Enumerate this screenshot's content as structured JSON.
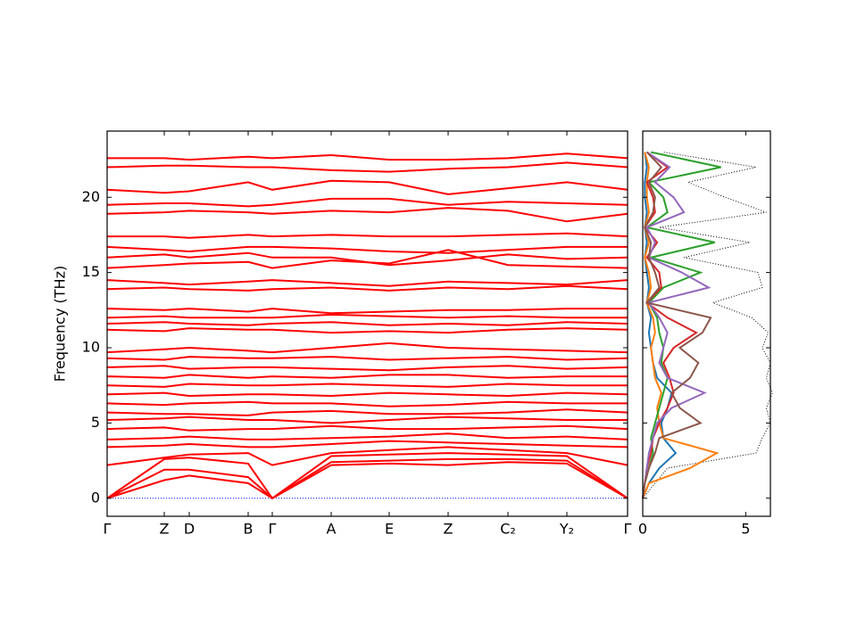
{
  "chart_data": [
    {
      "type": "band",
      "y_label": "Frequency (THz)",
      "line_color": "#ff0000",
      "zero_line": "#0000ff",
      "x": [
        0,
        0.64,
        0.92,
        1.58,
        1.85,
        2.51,
        3.16,
        3.82,
        4.49,
        5.15,
        5.83
      ],
      "xlim": [
        0,
        5.83
      ],
      "xticks": [
        {
          "value": 0,
          "label": "Γ"
        },
        {
          "value": 0.64,
          "label": "Z"
        },
        {
          "value": 0.92,
          "label": "D"
        },
        {
          "value": 1.58,
          "label": "B"
        },
        {
          "value": 1.85,
          "label": "Γ"
        },
        {
          "value": 2.51,
          "label": "A"
        },
        {
          "value": 3.16,
          "label": "E"
        },
        {
          "value": 3.82,
          "label": "Z"
        },
        {
          "value": 4.49,
          "label": "C₂"
        },
        {
          "value": 5.15,
          "label": "Y₂"
        },
        {
          "value": 5.83,
          "label": "Γ"
        }
      ],
      "ylim": [
        -1.2,
        24.4
      ],
      "yticks": [
        0,
        5,
        10,
        15,
        20
      ],
      "series": [
        {
          "values": [
            0,
            1.2,
            1.5,
            1.0,
            0,
            2.2,
            2.3,
            2.2,
            2.4,
            2.3,
            0
          ]
        },
        {
          "values": [
            0,
            1.9,
            1.9,
            1.4,
            0,
            2.4,
            2.5,
            2.6,
            2.6,
            2.5,
            0
          ]
        },
        {
          "values": [
            0,
            2.6,
            2.7,
            2.3,
            0,
            2.8,
            2.9,
            3.0,
            2.9,
            2.8,
            0
          ]
        },
        {
          "values": [
            2.2,
            2.7,
            2.9,
            3.0,
            2.2,
            3.0,
            3.2,
            3.4,
            3.2,
            3.0,
            2.2
          ]
        },
        {
          "values": [
            3.4,
            3.5,
            3.6,
            3.4,
            3.4,
            3.6,
            3.8,
            3.7,
            3.6,
            3.5,
            3.4
          ]
        },
        {
          "values": [
            3.9,
            4.0,
            4.1,
            3.9,
            3.9,
            4.0,
            4.1,
            4.3,
            4.0,
            4.1,
            3.9
          ]
        },
        {
          "values": [
            4.6,
            4.7,
            4.5,
            4.6,
            4.6,
            4.8,
            4.6,
            4.6,
            4.7,
            4.8,
            4.6
          ]
        },
        {
          "values": [
            5.2,
            5.3,
            5.4,
            5.2,
            5.2,
            5.0,
            5.2,
            5.4,
            5.3,
            5.2,
            5.2
          ]
        },
        {
          "values": [
            5.7,
            5.6,
            5.6,
            5.5,
            5.7,
            5.8,
            5.6,
            5.6,
            5.7,
            5.9,
            5.7
          ]
        },
        {
          "values": [
            6.3,
            6.2,
            6.3,
            6.4,
            6.3,
            6.3,
            6.1,
            6.2,
            6.4,
            6.3,
            6.3
          ]
        },
        {
          "values": [
            6.9,
            7.0,
            6.8,
            6.9,
            6.9,
            6.8,
            7.0,
            6.9,
            6.8,
            7.0,
            6.9
          ]
        },
        {
          "values": [
            7.5,
            7.4,
            7.6,
            7.5,
            7.5,
            7.6,
            7.5,
            7.4,
            7.6,
            7.5,
            7.5
          ]
        },
        {
          "values": [
            8.1,
            8.0,
            8.2,
            8.0,
            8.1,
            8.0,
            8.2,
            8.2,
            8.0,
            8.1,
            8.1
          ]
        },
        {
          "values": [
            8.7,
            8.8,
            8.6,
            8.7,
            8.7,
            8.6,
            8.5,
            8.7,
            8.8,
            8.6,
            8.7
          ]
        },
        {
          "values": [
            9.3,
            9.2,
            9.4,
            9.3,
            9.3,
            9.4,
            9.2,
            9.3,
            9.4,
            9.2,
            9.3
          ]
        },
        {
          "values": [
            9.7,
            9.9,
            10.0,
            9.8,
            9.7,
            10.0,
            10.3,
            10.0,
            9.9,
            9.8,
            9.7
          ]
        },
        {
          "values": [
            11.2,
            11.1,
            11.3,
            11.2,
            11.2,
            11.0,
            11.1,
            11.0,
            11.2,
            11.3,
            11.2
          ]
        },
        {
          "values": [
            11.6,
            11.7,
            11.6,
            11.5,
            11.6,
            11.7,
            11.5,
            11.6,
            11.5,
            11.7,
            11.6
          ]
        },
        {
          "values": [
            12.0,
            12.1,
            12.0,
            12.0,
            12.0,
            12.2,
            12.1,
            12.0,
            12.1,
            12.0,
            12.0
          ]
        },
        {
          "values": [
            12.6,
            12.5,
            12.6,
            12.4,
            12.6,
            12.3,
            12.4,
            12.5,
            12.5,
            12.6,
            12.6
          ]
        },
        {
          "values": [
            13.9,
            14.0,
            13.9,
            13.8,
            13.9,
            14.0,
            13.8,
            14.0,
            13.9,
            14.1,
            13.9
          ]
        },
        {
          "values": [
            14.5,
            14.3,
            14.2,
            14.4,
            14.5,
            14.3,
            14.1,
            14.4,
            14.3,
            14.2,
            14.5
          ]
        },
        {
          "values": [
            15.3,
            15.5,
            15.6,
            15.7,
            15.3,
            15.8,
            15.6,
            16.5,
            15.5,
            15.4,
            15.3
          ]
        },
        {
          "values": [
            16.0,
            16.2,
            16.0,
            16.3,
            16.0,
            16.0,
            15.5,
            15.8,
            16.2,
            15.9,
            16.0
          ]
        },
        {
          "values": [
            16.7,
            16.5,
            16.4,
            16.7,
            16.7,
            16.6,
            16.4,
            16.3,
            16.5,
            16.7,
            16.7
          ]
        },
        {
          "values": [
            17.4,
            17.4,
            17.3,
            17.5,
            17.4,
            17.5,
            17.4,
            17.4,
            17.5,
            17.6,
            17.4
          ]
        },
        {
          "values": [
            18.9,
            19.0,
            19.1,
            19.0,
            18.9,
            19.1,
            19.0,
            19.3,
            19.1,
            18.4,
            18.9
          ]
        },
        {
          "values": [
            19.5,
            19.6,
            19.6,
            19.4,
            19.5,
            19.9,
            19.9,
            19.5,
            19.7,
            19.6,
            19.5
          ]
        },
        {
          "values": [
            20.5,
            20.3,
            20.4,
            21.0,
            20.5,
            21.1,
            21.0,
            20.2,
            20.6,
            21.0,
            20.5
          ]
        },
        {
          "values": [
            22.0,
            22.1,
            22.1,
            22.0,
            22.0,
            21.8,
            21.7,
            21.9,
            22.0,
            22.3,
            22.0
          ]
        },
        {
          "values": [
            22.6,
            22.6,
            22.5,
            22.7,
            22.6,
            22.8,
            22.5,
            22.5,
            22.6,
            22.9,
            22.6
          ]
        }
      ]
    },
    {
      "type": "dos",
      "y": [
        0,
        1,
        2,
        3,
        4,
        5,
        6,
        7,
        8,
        9,
        10,
        11,
        12,
        13,
        14,
        15,
        16,
        17,
        18,
        19,
        20,
        21,
        22,
        23
      ],
      "xlim": [
        0,
        6.2
      ],
      "xticks": [
        0,
        5
      ],
      "ylim": [
        -1.2,
        24.4
      ],
      "yticks": [
        0,
        5,
        10,
        15,
        20
      ],
      "series": [
        {
          "color": "#000000",
          "style": "dotted",
          "values": [
            0,
            0.6,
            1.2,
            5.5,
            5.8,
            6.2,
            6.0,
            6.3,
            6.0,
            6.2,
            5.8,
            6.1,
            5.3,
            3.4,
            5.8,
            5.6,
            2.0,
            5.2,
            0.8,
            6.0,
            4.0,
            2.2,
            5.5,
            1.0
          ]
        },
        {
          "color": "#1f77b4",
          "values": [
            0,
            0.3,
            0.8,
            1.6,
            1.0,
            0.9,
            1.2,
            1.4,
            0.7,
            0.5,
            0.4,
            0.3,
            0.4,
            0.2,
            0.3,
            0.2,
            0.1,
            0.2,
            0.1,
            0.2,
            0.1,
            0.1,
            0.2,
            0.1
          ]
        },
        {
          "color": "#ff7f0e",
          "values": [
            0,
            0.3,
            2.3,
            3.6,
            1.0,
            0.8,
            0.7,
            0.9,
            0.6,
            0.5,
            0.4,
            0.6,
            0.5,
            0.2,
            0.4,
            0.3,
            0.1,
            0.3,
            0.1,
            0.3,
            0.2,
            0.2,
            0.3,
            0.1
          ]
        },
        {
          "color": "#2ca02c",
          "values": [
            0,
            0.1,
            0.3,
            0.5,
            0.4,
            0.6,
            0.8,
            1.0,
            1.2,
            0.9,
            1.0,
            0.8,
            0.7,
            0.3,
            1.0,
            2.8,
            0.4,
            3.5,
            0.2,
            1.2,
            1.0,
            0.3,
            3.8,
            0.4
          ]
        },
        {
          "color": "#d62728",
          "values": [
            0,
            0.1,
            0.2,
            0.4,
            0.5,
            0.8,
            1.2,
            1.5,
            1.3,
            1.0,
            1.5,
            2.6,
            1.2,
            0.2,
            0.9,
            0.8,
            0.2,
            0.7,
            0.1,
            0.6,
            0.5,
            0.2,
            1.2,
            0.2
          ]
        },
        {
          "color": "#9467bd",
          "values": [
            0,
            0.1,
            0.2,
            0.3,
            0.5,
            0.7,
            1.4,
            3.0,
            1.2,
            0.8,
            1.0,
            1.2,
            0.8,
            0.3,
            3.2,
            1.9,
            0.3,
            0.6,
            0.2,
            2.0,
            1.5,
            0.6,
            1.3,
            0.2
          ]
        },
        {
          "color": "#8c564b",
          "values": [
            0,
            0.1,
            0.3,
            0.6,
            0.8,
            2.8,
            1.8,
            1.4,
            2.3,
            2.7,
            1.8,
            2.9,
            3.3,
            0.2,
            0.8,
            0.6,
            0.3,
            0.4,
            0.1,
            0.5,
            0.6,
            0.3,
            0.9,
            0.2
          ]
        }
      ]
    }
  ]
}
